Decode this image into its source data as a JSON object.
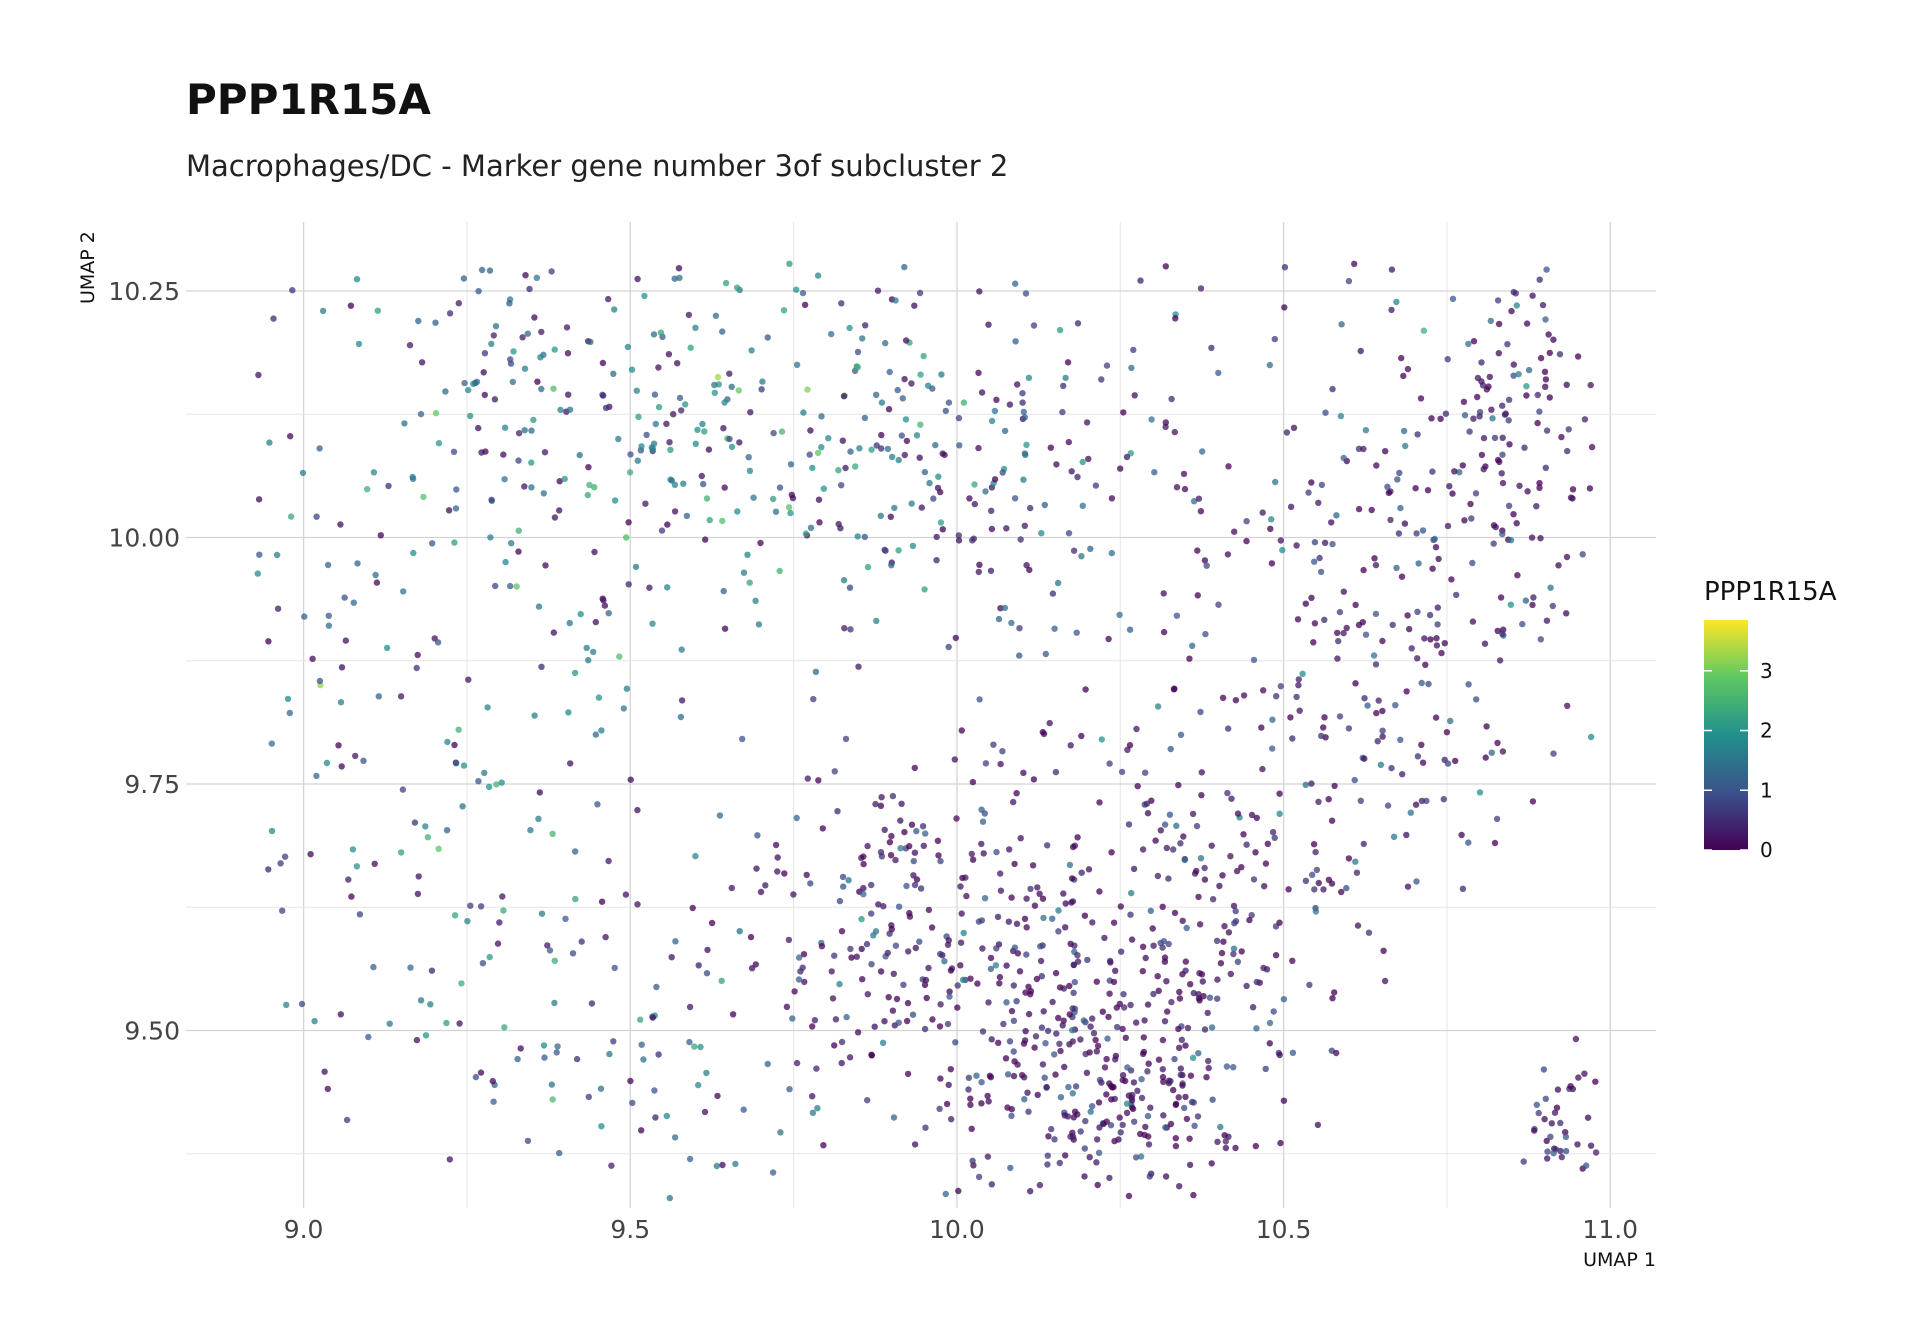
{
  "chart_data": {
    "type": "scatter",
    "title": "PPP1R15A",
    "subtitle": "Macrophages/DC - Marker gene number 3of subcluster 2",
    "xlabel": "UMAP 1",
    "ylabel": "UMAP 2",
    "xlim": [
      8.82,
      11.07
    ],
    "ylim": [
      9.32,
      10.32
    ],
    "x_ticks": [
      "9.0",
      "9.5",
      "10.0",
      "10.5",
      "11.0"
    ],
    "y_ticks": [
      "9.50",
      "9.75",
      "10.00",
      "10.25"
    ],
    "grid": true,
    "legend": {
      "title": "PPP1R15A",
      "placement": "right",
      "ticks": [
        "0",
        "1",
        "2",
        "3"
      ],
      "range": [
        0,
        3.85
      ],
      "colormap": "viridis",
      "colors": [
        "#440154",
        "#3b528b",
        "#21908c",
        "#5dc863",
        "#fde725"
      ]
    },
    "point_generation_note_omitted": true,
    "clusters": [
      {
        "cx": 10.22,
        "cy": 9.45,
        "sx": 0.13,
        "sy": 0.07,
        "n": 320,
        "mean": 0.25
      },
      {
        "cx": 9.95,
        "cy": 9.62,
        "sx": 0.14,
        "sy": 0.09,
        "n": 220,
        "mean": 0.35
      },
      {
        "cx": 10.35,
        "cy": 9.65,
        "sx": 0.15,
        "sy": 0.1,
        "n": 200,
        "mean": 0.4
      },
      {
        "cx": 10.65,
        "cy": 9.9,
        "sx": 0.12,
        "sy": 0.14,
        "n": 200,
        "mean": 0.6
      },
      {
        "cx": 10.85,
        "cy": 10.1,
        "sx": 0.08,
        "sy": 0.1,
        "n": 150,
        "mean": 0.3
      },
      {
        "cx": 10.2,
        "cy": 10.05,
        "sx": 0.2,
        "sy": 0.14,
        "n": 180,
        "mean": 0.8
      },
      {
        "cx": 9.7,
        "cy": 10.1,
        "sx": 0.22,
        "sy": 0.11,
        "n": 260,
        "mean": 1.7
      },
      {
        "cx": 9.3,
        "cy": 10.15,
        "sx": 0.09,
        "sy": 0.08,
        "n": 70,
        "mean": 1.3
      },
      {
        "cx": 9.25,
        "cy": 9.85,
        "sx": 0.18,
        "sy": 0.22,
        "n": 160,
        "mean": 1.5
      },
      {
        "cx": 9.55,
        "cy": 9.5,
        "sx": 0.25,
        "sy": 0.09,
        "n": 110,
        "mean": 1.2
      },
      {
        "cx": 10.93,
        "cy": 9.4,
        "sx": 0.03,
        "sy": 0.03,
        "n": 40,
        "mean": 0.5
      },
      {
        "cx": 9.0,
        "cy": 9.7,
        "sx": 0.08,
        "sy": 0.25,
        "n": 40,
        "mean": 1.0
      }
    ]
  }
}
